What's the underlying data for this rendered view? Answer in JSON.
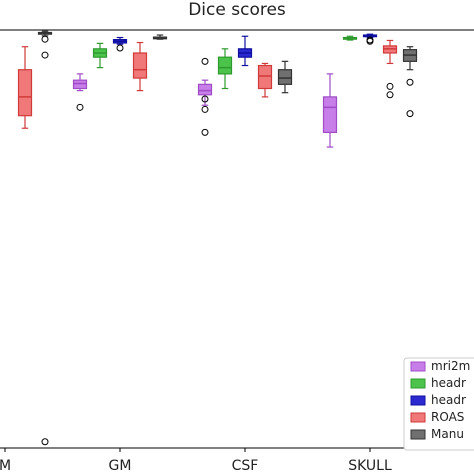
{
  "chart_data": {
    "type": "box",
    "title": "Dice scores",
    "categories": [
      "M",
      "GM",
      "CSF",
      "SKULL"
    ],
    "ylim": [
      0.0,
      1.0
    ],
    "series": [
      {
        "name": "mri2m",
        "color": "#c77ee8",
        "edge": "#a04cc8"
      },
      {
        "name": "headr",
        "color": "#4cc44c",
        "edge": "#2e9a2e"
      },
      {
        "name": "headr",
        "color": "#2a2ad0",
        "edge": "#1010a0"
      },
      {
        "name": "ROAS",
        "color": "#f07878",
        "edge": "#d03a3a"
      },
      {
        "name": "Manu",
        "color": "#707070",
        "edge": "#333333"
      }
    ],
    "boxes": [
      {
        "category": "M",
        "series": 3,
        "whislo": 0.765,
        "q1": 0.795,
        "med": 0.84,
        "q3": 0.905,
        "whishi": 0.96,
        "fliers": []
      },
      {
        "category": "M",
        "series": 4,
        "whislo": 0.986,
        "q1": 0.99,
        "med": 0.992,
        "q3": 0.994,
        "whishi": 0.997,
        "fliers": [
          0.978,
          0.94,
          0.015
        ]
      },
      {
        "category": "GM",
        "series": 0,
        "whislo": 0.855,
        "q1": 0.86,
        "med": 0.872,
        "q3": 0.88,
        "whishi": 0.895,
        "fliers": [
          0.815
        ]
      },
      {
        "category": "GM",
        "series": 1,
        "whislo": 0.91,
        "q1": 0.935,
        "med": 0.945,
        "q3": 0.955,
        "whishi": 0.968,
        "fliers": []
      },
      {
        "category": "GM",
        "series": 2,
        "whislo": 0.966,
        "q1": 0.969,
        "med": 0.973,
        "q3": 0.977,
        "whishi": 0.982,
        "fliers": [
          0.957
        ]
      },
      {
        "category": "GM",
        "series": 3,
        "whislo": 0.855,
        "q1": 0.885,
        "med": 0.905,
        "q3": 0.945,
        "whishi": 0.97,
        "fliers": []
      },
      {
        "category": "GM",
        "series": 4,
        "whislo": 0.978,
        "q1": 0.979,
        "med": 0.981,
        "q3": 0.983,
        "whishi": 0.988,
        "fliers": []
      },
      {
        "category": "CSF",
        "series": 0,
        "whislo": 0.82,
        "q1": 0.845,
        "med": 0.855,
        "q3": 0.87,
        "whishi": 0.88,
        "fliers": [
          0.925,
          0.835,
          0.81,
          0.755
        ]
      },
      {
        "category": "CSF",
        "series": 1,
        "whislo": 0.86,
        "q1": 0.895,
        "med": 0.91,
        "q3": 0.935,
        "whishi": 0.955,
        "fliers": []
      },
      {
        "category": "CSF",
        "series": 2,
        "whislo": 0.915,
        "q1": 0.935,
        "med": 0.945,
        "q3": 0.955,
        "whishi": 0.985,
        "fliers": []
      },
      {
        "category": "CSF",
        "series": 3,
        "whislo": 0.84,
        "q1": 0.86,
        "med": 0.89,
        "q3": 0.915,
        "whishi": 0.92,
        "fliers": []
      },
      {
        "category": "CSF",
        "series": 4,
        "whislo": 0.85,
        "q1": 0.87,
        "med": 0.885,
        "q3": 0.905,
        "whishi": 0.925,
        "fliers": []
      },
      {
        "category": "SKULL",
        "series": 0,
        "whislo": 0.72,
        "q1": 0.755,
        "med": 0.815,
        "q3": 0.84,
        "whishi": 0.895,
        "fliers": []
      },
      {
        "category": "SKULL",
        "series": 1,
        "whislo": 0.976,
        "q1": 0.978,
        "med": 0.98,
        "q3": 0.982,
        "whishi": 0.985,
        "fliers": []
      },
      {
        "category": "SKULL",
        "series": 2,
        "whislo": 0.982,
        "q1": 0.984,
        "med": 0.986,
        "q3": 0.988,
        "whishi": 0.99,
        "fliers": [
          0.976,
          0.973
        ]
      },
      {
        "category": "SKULL",
        "series": 3,
        "whislo": 0.92,
        "q1": 0.945,
        "med": 0.955,
        "q3": 0.962,
        "whishi": 0.975,
        "fliers": [
          0.865,
          0.845
        ]
      },
      {
        "category": "SKULL",
        "series": 4,
        "whislo": 0.905,
        "q1": 0.925,
        "med": 0.94,
        "q3": 0.953,
        "whishi": 0.96,
        "fliers": [
          0.875,
          0.8
        ]
      }
    ],
    "grid": false,
    "legend": "lower-right"
  }
}
